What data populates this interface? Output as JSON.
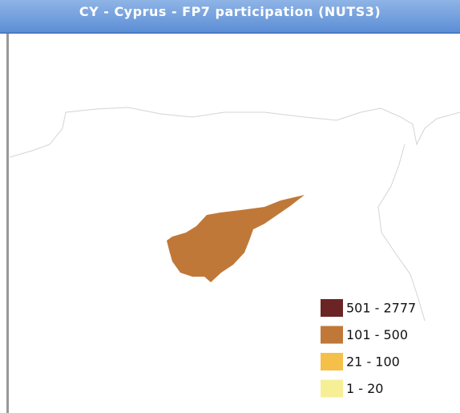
{
  "header": {
    "title": "CY - Cyprus - FP7 participation (NUTS3)"
  },
  "map": {
    "highlight_class": 1
  },
  "legend": {
    "items": [
      {
        "label": "501 - 2777",
        "color": "#6b2424"
      },
      {
        "label": "101 - 500",
        "color": "#c07838"
      },
      {
        "label": "21 - 100",
        "color": "#f5c04a"
      },
      {
        "label": "1 - 20",
        "color": "#f7ef96"
      }
    ]
  }
}
